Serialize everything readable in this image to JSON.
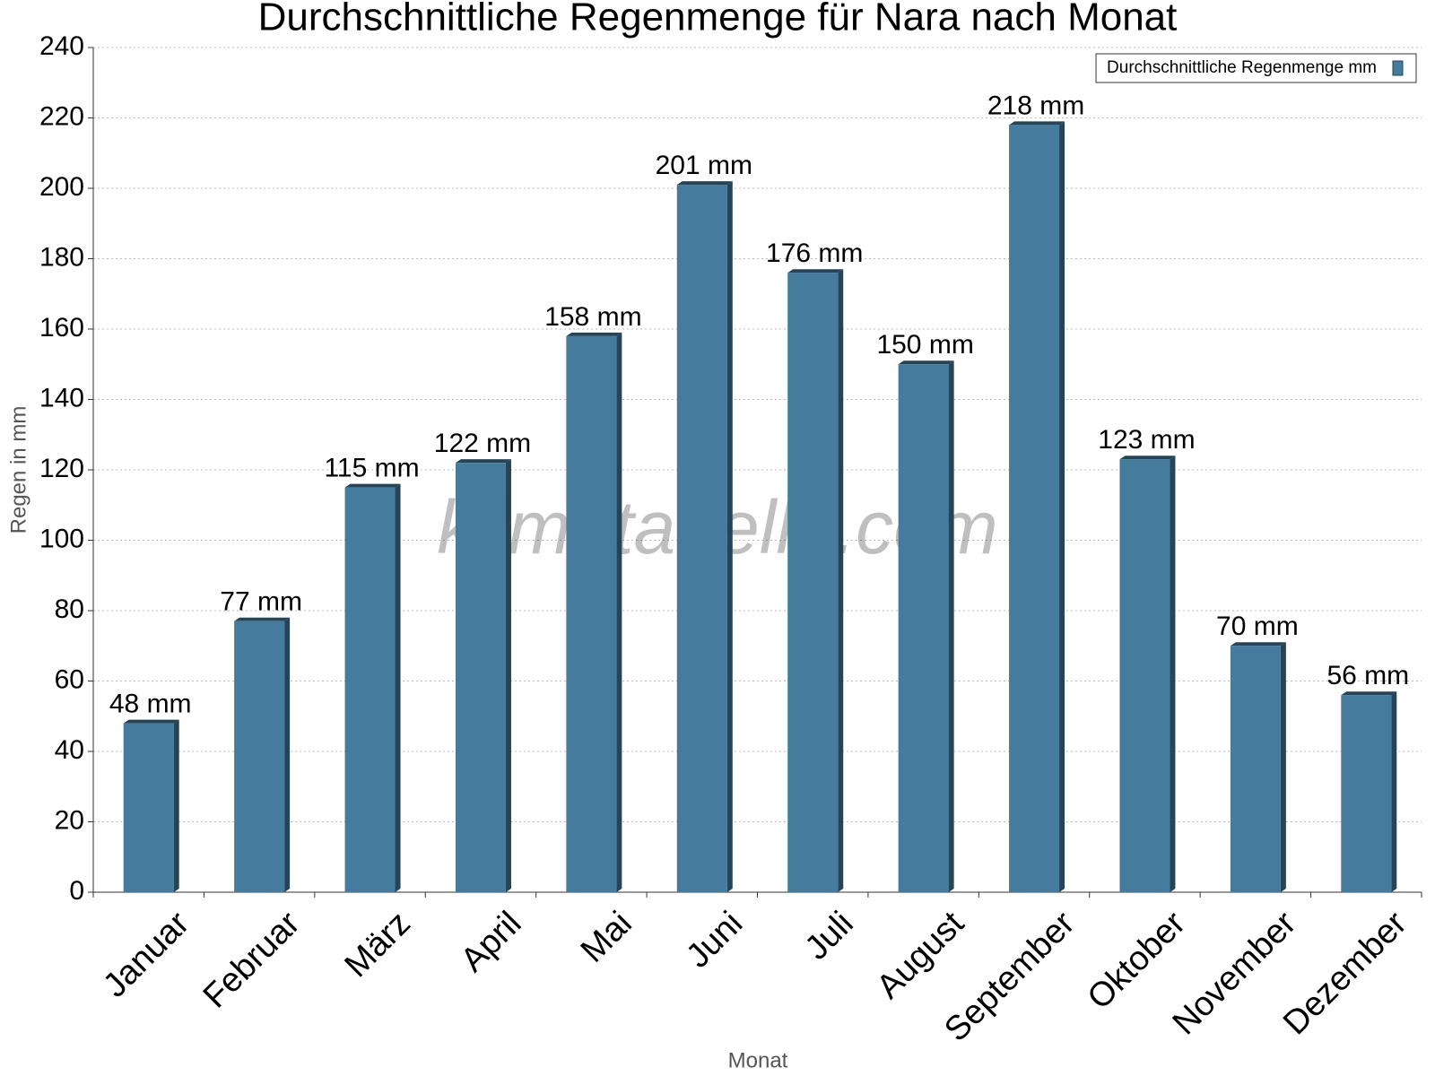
{
  "chart_data": {
    "type": "bar",
    "title": "Durchschnittliche Regenmenge für Nara nach Monat",
    "x_label": "Monat",
    "y_label": "Regen in mm",
    "watermark": "klimatabelle.com",
    "categories": [
      "Januar",
      "Februar",
      "März",
      "April",
      "Mai",
      "Juni",
      "Juli",
      "August",
      "September",
      "Oktober",
      "November",
      "Dezember"
    ],
    "series": [
      {
        "name": "Durchschnittliche Regenmenge mm",
        "color": "#457b9d",
        "values": [
          48,
          77,
          115,
          122,
          158,
          201,
          176,
          150,
          218,
          123,
          70,
          56
        ],
        "value_labels": [
          "48 mm",
          "77 mm",
          "115 mm",
          "122 mm",
          "158 mm",
          "201 mm",
          "176 mm",
          "150 mm",
          "218 mm",
          "123 mm",
          "70 mm",
          "56 mm"
        ]
      }
    ],
    "ylim": [
      0,
      240
    ],
    "yticks": [
      0,
      20,
      40,
      60,
      80,
      100,
      120,
      140,
      160,
      180,
      200,
      220,
      240
    ],
    "grid": true,
    "legend": "top-right"
  }
}
